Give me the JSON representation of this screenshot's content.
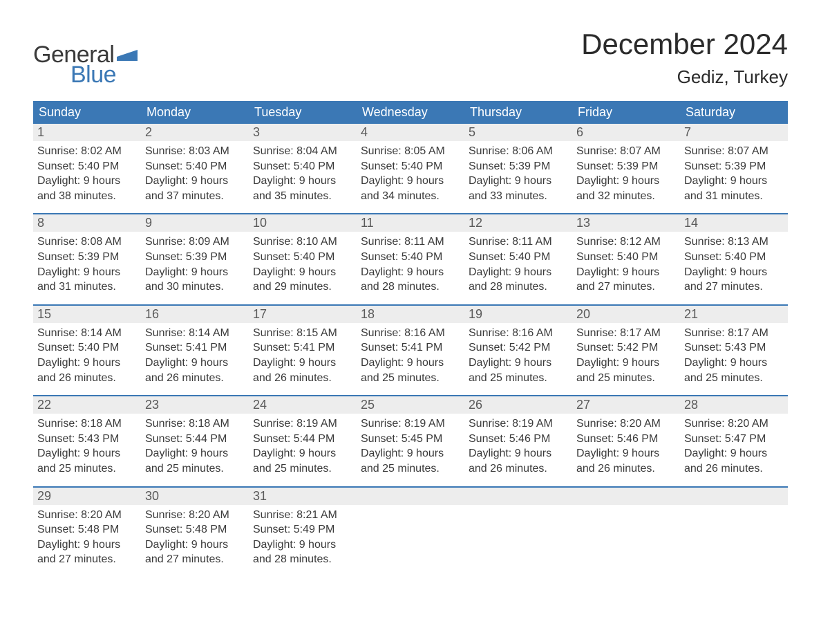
{
  "logo": {
    "text_general": "General",
    "text_blue": "Blue",
    "flag_color": "#3b78b5"
  },
  "title": "December 2024",
  "location": "Gediz, Turkey",
  "colors": {
    "header_bg": "#3b78b5",
    "header_text": "#ffffff",
    "daynum_bg": "#ededed",
    "daynum_text": "#5a5a5a",
    "body_text": "#3a3a3a",
    "week_border": "#3b78b5",
    "page_bg": "#ffffff"
  },
  "fonts": {
    "title_size_pt": 32,
    "location_size_pt": 20,
    "weekday_size_pt": 14,
    "daynum_size_pt": 14,
    "body_size_pt": 12
  },
  "weekdays": [
    "Sunday",
    "Monday",
    "Tuesday",
    "Wednesday",
    "Thursday",
    "Friday",
    "Saturday"
  ],
  "weeks": [
    [
      {
        "n": "1",
        "sunrise": "8:02 AM",
        "sunset": "5:40 PM",
        "daylight": "9 hours and 38 minutes."
      },
      {
        "n": "2",
        "sunrise": "8:03 AM",
        "sunset": "5:40 PM",
        "daylight": "9 hours and 37 minutes."
      },
      {
        "n": "3",
        "sunrise": "8:04 AM",
        "sunset": "5:40 PM",
        "daylight": "9 hours and 35 minutes."
      },
      {
        "n": "4",
        "sunrise": "8:05 AM",
        "sunset": "5:40 PM",
        "daylight": "9 hours and 34 minutes."
      },
      {
        "n": "5",
        "sunrise": "8:06 AM",
        "sunset": "5:39 PM",
        "daylight": "9 hours and 33 minutes."
      },
      {
        "n": "6",
        "sunrise": "8:07 AM",
        "sunset": "5:39 PM",
        "daylight": "9 hours and 32 minutes."
      },
      {
        "n": "7",
        "sunrise": "8:07 AM",
        "sunset": "5:39 PM",
        "daylight": "9 hours and 31 minutes."
      }
    ],
    [
      {
        "n": "8",
        "sunrise": "8:08 AM",
        "sunset": "5:39 PM",
        "daylight": "9 hours and 31 minutes."
      },
      {
        "n": "9",
        "sunrise": "8:09 AM",
        "sunset": "5:39 PM",
        "daylight": "9 hours and 30 minutes."
      },
      {
        "n": "10",
        "sunrise": "8:10 AM",
        "sunset": "5:40 PM",
        "daylight": "9 hours and 29 minutes."
      },
      {
        "n": "11",
        "sunrise": "8:11 AM",
        "sunset": "5:40 PM",
        "daylight": "9 hours and 28 minutes."
      },
      {
        "n": "12",
        "sunrise": "8:11 AM",
        "sunset": "5:40 PM",
        "daylight": "9 hours and 28 minutes."
      },
      {
        "n": "13",
        "sunrise": "8:12 AM",
        "sunset": "5:40 PM",
        "daylight": "9 hours and 27 minutes."
      },
      {
        "n": "14",
        "sunrise": "8:13 AM",
        "sunset": "5:40 PM",
        "daylight": "9 hours and 27 minutes."
      }
    ],
    [
      {
        "n": "15",
        "sunrise": "8:14 AM",
        "sunset": "5:40 PM",
        "daylight": "9 hours and 26 minutes."
      },
      {
        "n": "16",
        "sunrise": "8:14 AM",
        "sunset": "5:41 PM",
        "daylight": "9 hours and 26 minutes."
      },
      {
        "n": "17",
        "sunrise": "8:15 AM",
        "sunset": "5:41 PM",
        "daylight": "9 hours and 26 minutes."
      },
      {
        "n": "18",
        "sunrise": "8:16 AM",
        "sunset": "5:41 PM",
        "daylight": "9 hours and 25 minutes."
      },
      {
        "n": "19",
        "sunrise": "8:16 AM",
        "sunset": "5:42 PM",
        "daylight": "9 hours and 25 minutes."
      },
      {
        "n": "20",
        "sunrise": "8:17 AM",
        "sunset": "5:42 PM",
        "daylight": "9 hours and 25 minutes."
      },
      {
        "n": "21",
        "sunrise": "8:17 AM",
        "sunset": "5:43 PM",
        "daylight": "9 hours and 25 minutes."
      }
    ],
    [
      {
        "n": "22",
        "sunrise": "8:18 AM",
        "sunset": "5:43 PM",
        "daylight": "9 hours and 25 minutes."
      },
      {
        "n": "23",
        "sunrise": "8:18 AM",
        "sunset": "5:44 PM",
        "daylight": "9 hours and 25 minutes."
      },
      {
        "n": "24",
        "sunrise": "8:19 AM",
        "sunset": "5:44 PM",
        "daylight": "9 hours and 25 minutes."
      },
      {
        "n": "25",
        "sunrise": "8:19 AM",
        "sunset": "5:45 PM",
        "daylight": "9 hours and 25 minutes."
      },
      {
        "n": "26",
        "sunrise": "8:19 AM",
        "sunset": "5:46 PM",
        "daylight": "9 hours and 26 minutes."
      },
      {
        "n": "27",
        "sunrise": "8:20 AM",
        "sunset": "5:46 PM",
        "daylight": "9 hours and 26 minutes."
      },
      {
        "n": "28",
        "sunrise": "8:20 AM",
        "sunset": "5:47 PM",
        "daylight": "9 hours and 26 minutes."
      }
    ],
    [
      {
        "n": "29",
        "sunrise": "8:20 AM",
        "sunset": "5:48 PM",
        "daylight": "9 hours and 27 minutes."
      },
      {
        "n": "30",
        "sunrise": "8:20 AM",
        "sunset": "5:48 PM",
        "daylight": "9 hours and 27 minutes."
      },
      {
        "n": "31",
        "sunrise": "8:21 AM",
        "sunset": "5:49 PM",
        "daylight": "9 hours and 28 minutes."
      },
      null,
      null,
      null,
      null
    ]
  ],
  "labels": {
    "sunrise": "Sunrise: ",
    "sunset": "Sunset: ",
    "daylight": "Daylight: "
  }
}
